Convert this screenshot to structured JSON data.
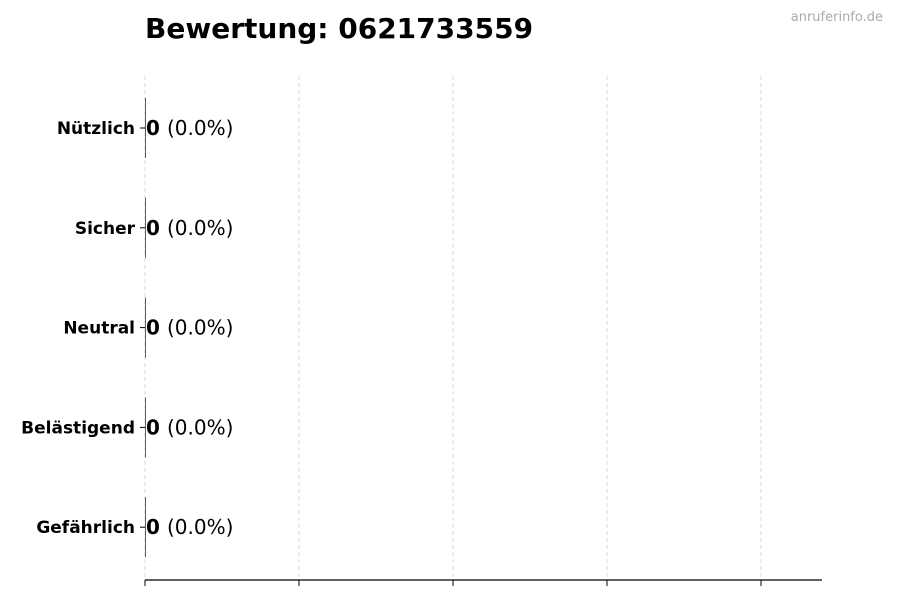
{
  "watermark": "anruferinfo.de",
  "chart_data": {
    "type": "bar",
    "orientation": "horizontal",
    "title": "Bewertung: 0621733559",
    "xlabel": "",
    "ylabel": "",
    "categories": [
      "Nützlich",
      "Sicher",
      "Neutral",
      "Belästigend",
      "Gefährlich"
    ],
    "values": [
      0,
      0,
      0,
      0,
      0
    ],
    "data_labels": [
      "0",
      "0",
      "0",
      "0",
      "0"
    ],
    "percent_labels": [
      "(0.0%)",
      "(0.0%)",
      "(0.0%)",
      "(0.0%)",
      "(0.0%)"
    ],
    "x_ticks_count": 5,
    "x_tick_labels_shown": false,
    "grid": "vertical dashed",
    "bar_color": "#333333",
    "grid_color": "#d9d9d9"
  }
}
